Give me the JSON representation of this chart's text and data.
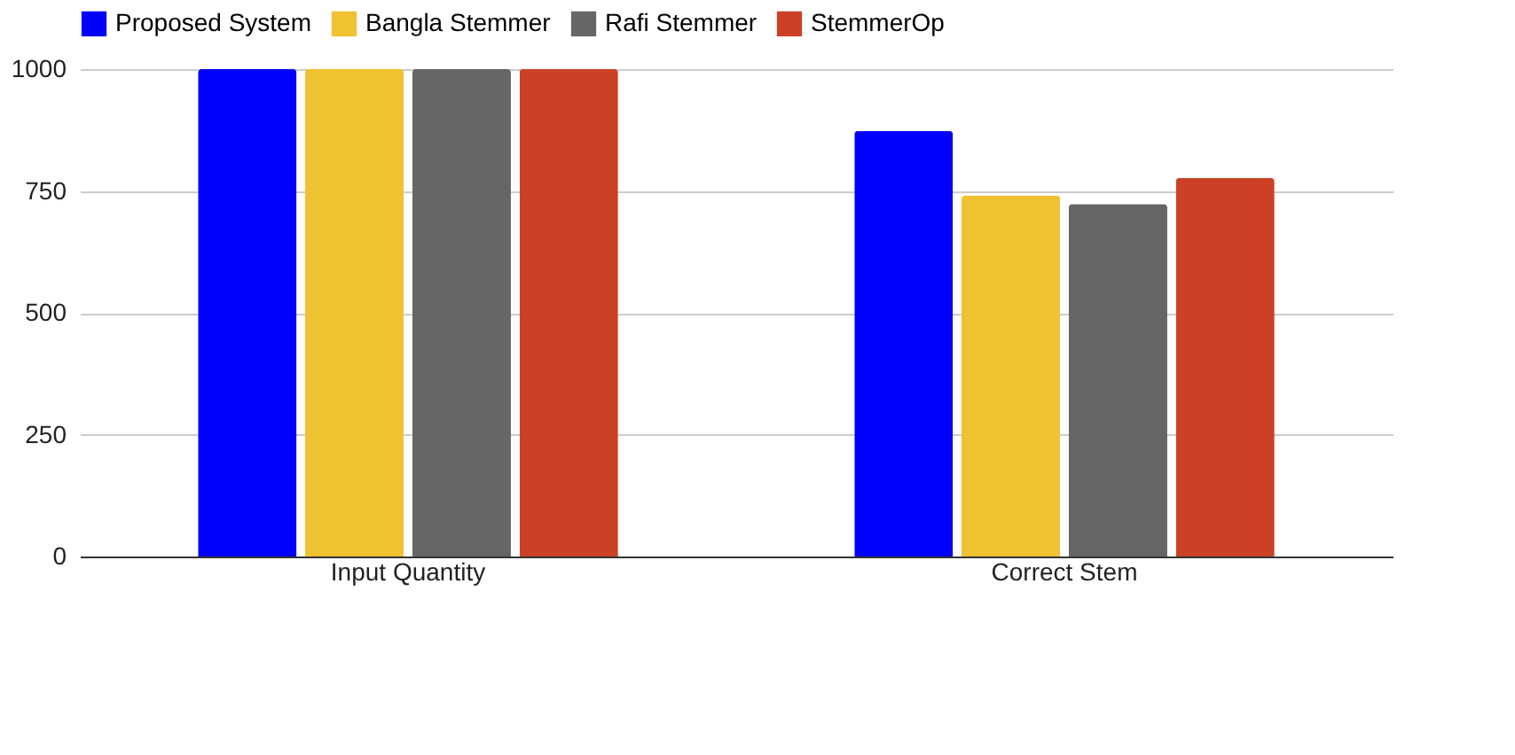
{
  "chart_data": {
    "type": "bar",
    "categories": [
      "Input Quantity",
      "Correct Stem"
    ],
    "series": [
      {
        "name": "Proposed System",
        "color": "#0000ff",
        "values": [
          1000,
          873
        ]
      },
      {
        "name": "Bangla Stemmer",
        "color": "#f0c131",
        "values": [
          1000,
          741
        ]
      },
      {
        "name": "Rafi Stemmer",
        "color": "#666666",
        "values": [
          1000,
          723
        ]
      },
      {
        "name": "StemmerOp",
        "color": "#cc4125",
        "values": [
          1000,
          777
        ]
      }
    ],
    "ylim": [
      0,
      1000
    ],
    "yticks": [
      0,
      250,
      500,
      750,
      1000
    ],
    "grid": "y",
    "legend": "top"
  }
}
